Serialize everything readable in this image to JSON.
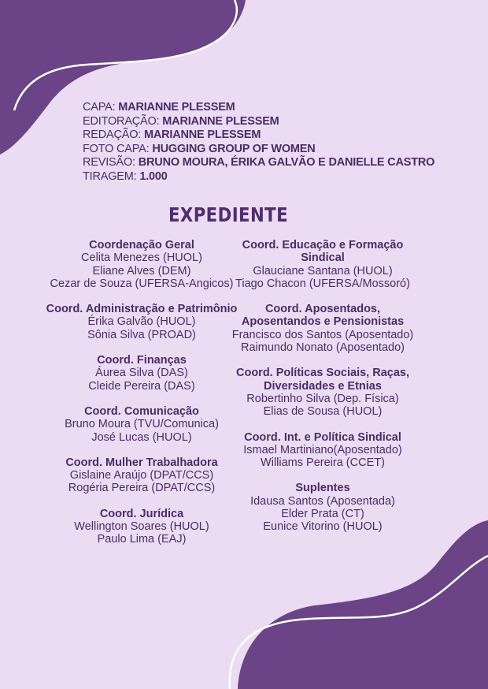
{
  "colors": {
    "background": "#ebdcf3",
    "accent": "#6a4486",
    "text": "#4b2c66"
  },
  "credits": [
    {
      "label": "CAPA:",
      "value": "MARIANNE PLESSEM"
    },
    {
      "label": "EDITORAÇÃO:",
      "value": "MARIANNE PLESSEM"
    },
    {
      "label": "REDAÇÃO:",
      "value": "MARIANNE PLESSEM"
    },
    {
      "label": "FOTO CAPA:",
      "value": "HUGGING GROUP OF WOMEN"
    },
    {
      "label": "REVISÃO:",
      "value": "BRUNO MOURA, ÉRIKA GALVÃO E DANIELLE CASTRO"
    },
    {
      "label": "TIRAGEM:",
      "value": "1.000"
    }
  ],
  "title": "EXPEDIENTE",
  "left": [
    {
      "heading": "Coordenação Geral",
      "members": [
        "Celita Menezes (HUOL)",
        "Eliane Alves (DEM)",
        "Cezar de Souza (UFERSA-Angicos)"
      ]
    },
    {
      "heading": "Coord. Administração e Patrimônio",
      "members": [
        "Érika Galvão (HUOL)",
        "Sônia Silva (PROAD)"
      ]
    },
    {
      "heading": "Coord. Finanças",
      "members": [
        "Áurea Silva (DAS)",
        "Cleide Pereira (DAS)"
      ]
    },
    {
      "heading": "Coord. Comunicação",
      "members": [
        "Bruno Moura (TVU/Comunica)",
        "José Lucas (HUOL)"
      ]
    },
    {
      "heading": "Coord. Mulher Trabalhadora",
      "members": [
        "Gislaine Araújo (DPAT/CCS)",
        "Rogéria Pereira (DPAT/CCS)"
      ]
    },
    {
      "heading": "Coord. Jurídica",
      "members": [
        "Wellington Soares (HUOL)",
        "Paulo Lima (EAJ)"
      ]
    }
  ],
  "right": [
    {
      "heading": "Coord. Educação e Formação Sindical",
      "members": [
        "Glauciane Santana (HUOL)",
        "Tiago Chacon (UFERSA/Mossoró)"
      ]
    },
    {
      "heading": "Coord. Aposentados, Aposentandos e Pensionistas",
      "members": [
        "Francisco dos Santos (Aposentado)",
        "Raimundo Nonato (Aposentado)"
      ]
    },
    {
      "heading": "Coord. Políticas Sociais, Raças, Diversidades e Etnias",
      "members": [
        "Robertinho Silva (Dep. Física)",
        "Elias de Sousa (HUOL)"
      ]
    },
    {
      "heading": "Coord. Int. e Política Sindical",
      "members": [
        "Ismael Martiniano(Aposentado)",
        "Williams Pereira (CCET)"
      ]
    },
    {
      "heading": "Suplentes",
      "members": [
        "Idausa Santos (Aposentada)",
        "Elder Prata (CT)",
        "Eunice Vitorino (HUOL)"
      ]
    }
  ]
}
